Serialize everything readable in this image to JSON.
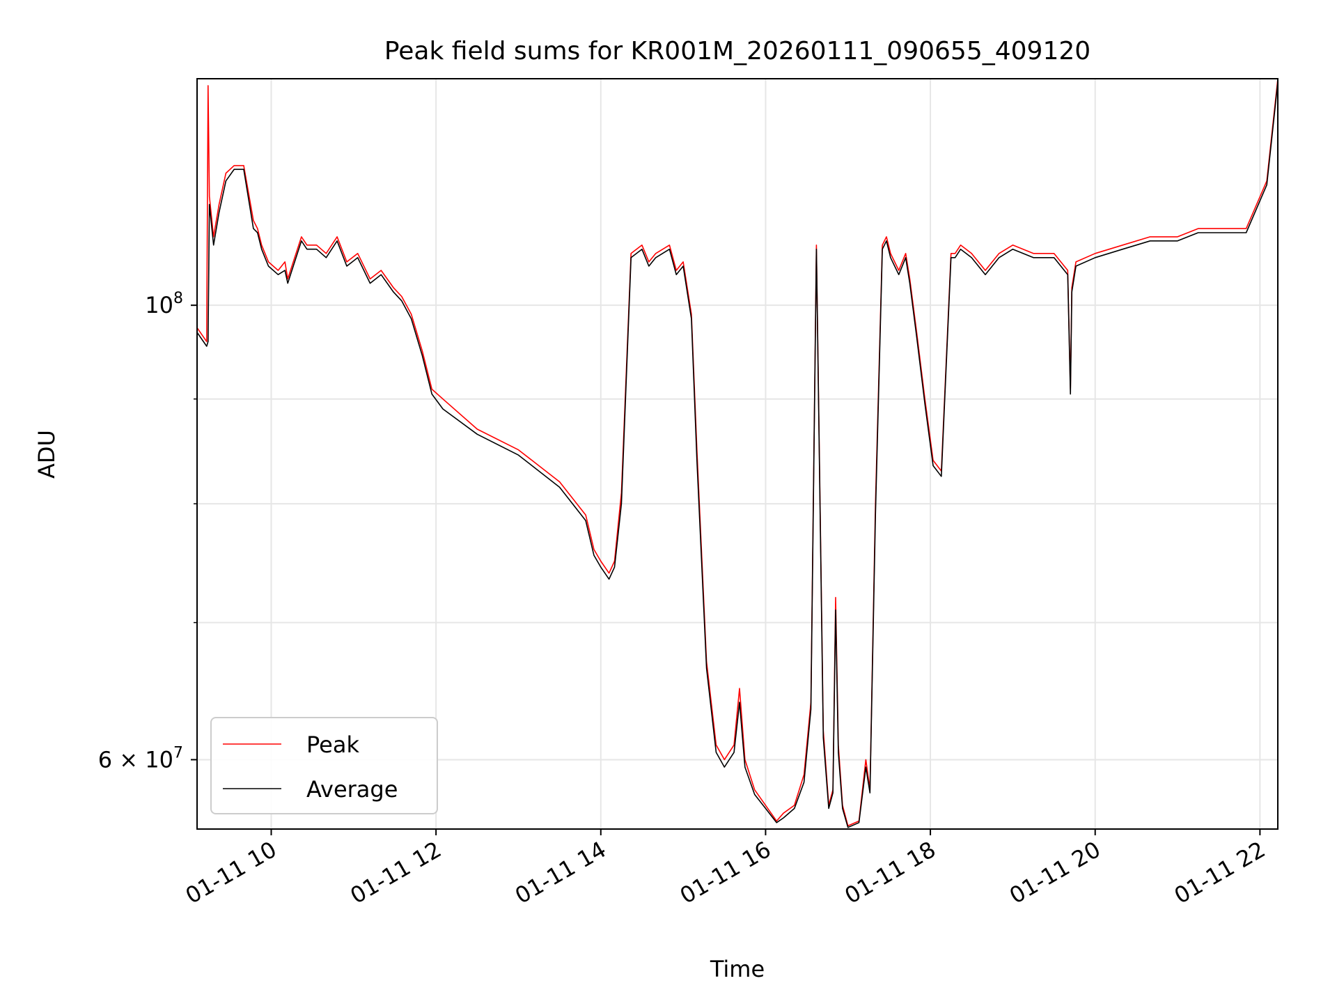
{
  "chart_data": {
    "type": "line",
    "title": "Peak field sums for KR001M_20260111_090655_409120",
    "xlabel": "Time",
    "ylabel": "ADU",
    "yscale": "log",
    "xlim": [
      "01-11 09:06",
      "01-11 22:13"
    ],
    "ylim": [
      55500000,
      129000000
    ],
    "grid": true,
    "legend_position": "lower left",
    "x_ticks": [
      "01-11 10",
      "01-11 12",
      "01-11 14",
      "01-11 16",
      "01-11 18",
      "01-11 20",
      "01-11 22"
    ],
    "y_tick_labels": [
      {
        "value": 100000000,
        "base": "10",
        "exp": "8"
      },
      {
        "value": 60000000,
        "base": "6 × 10",
        "exp": "7"
      }
    ],
    "y_minor_ticks": [
      70000000,
      80000000,
      90000000
    ],
    "series": [
      {
        "name": "Peak",
        "color": "#ff0000",
        "x": [
          "01-11 09:06",
          "01-11 09:13",
          "01-11 09:14",
          "01-11 09:15",
          "01-11 09:18",
          "01-11 09:22",
          "01-11 09:27",
          "01-11 09:33",
          "01-11 09:40",
          "01-11 09:47",
          "01-11 09:50",
          "01-11 09:53",
          "01-11 09:58",
          "01-11 10:05",
          "01-11 10:10",
          "01-11 10:12",
          "01-11 10:22",
          "01-11 10:26",
          "01-11 10:33",
          "01-11 10:40",
          "01-11 10:48",
          "01-11 10:55",
          "01-11 11:03",
          "01-11 11:12",
          "01-11 11:20",
          "01-11 11:29",
          "01-11 11:35",
          "01-11 11:42",
          "01-11 11:50",
          "01-11 11:57",
          "01-11 12:05",
          "01-11 12:30",
          "01-11 13:00",
          "01-11 13:30",
          "01-11 13:49",
          "01-11 13:55",
          "01-11 14:00",
          "01-11 14:06",
          "01-11 14:10",
          "01-11 14:15",
          "01-11 14:22",
          "01-11 14:30",
          "01-11 14:35",
          "01-11 14:40",
          "01-11 14:50",
          "01-11 14:55",
          "01-11 15:00",
          "01-11 15:06",
          "01-11 15:10",
          "01-11 15:17",
          "01-11 15:24",
          "01-11 15:30",
          "01-11 15:37",
          "01-11 15:41",
          "01-11 15:45",
          "01-11 15:52",
          "01-11 16:00",
          "01-11 16:08",
          "01-11 16:13",
          "01-11 16:21",
          "01-11 16:28",
          "01-11 16:33",
          "01-11 16:37",
          "01-11 16:42",
          "01-11 16:46",
          "01-11 16:49",
          "01-11 16:51",
          "01-11 16:53",
          "01-11 16:56",
          "01-11 17:00",
          "01-11 17:08",
          "01-11 17:13",
          "01-11 17:16",
          "01-11 17:20",
          "01-11 17:25",
          "01-11 17:28",
          "01-11 17:31",
          "01-11 17:37",
          "01-11 17:42",
          "01-11 17:45",
          "01-11 17:50",
          "01-11 17:56",
          "01-11 18:02",
          "01-11 18:08",
          "01-11 18:15",
          "01-11 18:18",
          "01-11 18:22",
          "01-11 18:30",
          "01-11 18:40",
          "01-11 18:50",
          "01-11 19:00",
          "01-11 19:15",
          "01-11 19:30",
          "01-11 19:40",
          "01-11 19:42",
          "01-11 19:43",
          "01-11 19:46",
          "01-11 20:00",
          "01-11 20:20",
          "01-11 20:40",
          "01-11 21:00",
          "01-11 21:15",
          "01-11 21:30",
          "01-11 21:50",
          "01-11 22:05",
          "01-11 22:13"
        ],
        "y": [
          97500000,
          96000000,
          128000000,
          113000000,
          108000000,
          112000000,
          116000000,
          117000000,
          117000000,
          110000000,
          109000000,
          107000000,
          105000000,
          104000000,
          105000000,
          103000000,
          108000000,
          107000000,
          107000000,
          106000000,
          108000000,
          105000000,
          106000000,
          103000000,
          104000000,
          102000000,
          101000000,
          99000000,
          95000000,
          91000000,
          90000000,
          87000000,
          85000000,
          82000000,
          79000000,
          76000000,
          75000000,
          74000000,
          75000000,
          81000000,
          106000000,
          107000000,
          105000000,
          106000000,
          107000000,
          104000000,
          105000000,
          99000000,
          85000000,
          67000000,
          61000000,
          60000000,
          61000000,
          65000000,
          60000000,
          58000000,
          57000000,
          56000000,
          56500000,
          57000000,
          59000000,
          64000000,
          107000000,
          62000000,
          57000000,
          58000000,
          72000000,
          61000000,
          57000000,
          55700000,
          56000000,
          60000000,
          58000000,
          80000000,
          107000000,
          108000000,
          106000000,
          104000000,
          106000000,
          103000000,
          97000000,
          90000000,
          84000000,
          83000000,
          106000000,
          106000000,
          107000000,
          106000000,
          104000000,
          106000000,
          107000000,
          106000000,
          106000000,
          104000000,
          91000000,
          102000000,
          105000000,
          106000000,
          107000000,
          108000000,
          108000000,
          109000000,
          109000000,
          109000000,
          115000000,
          129000000
        ]
      },
      {
        "name": "Average",
        "color": "#000000",
        "x": [
          "01-11 09:06",
          "01-11 09:13",
          "01-11 09:14",
          "01-11 09:15",
          "01-11 09:18",
          "01-11 09:22",
          "01-11 09:27",
          "01-11 09:33",
          "01-11 09:40",
          "01-11 09:47",
          "01-11 09:50",
          "01-11 09:53",
          "01-11 09:58",
          "01-11 10:05",
          "01-11 10:10",
          "01-11 10:12",
          "01-11 10:22",
          "01-11 10:26",
          "01-11 10:33",
          "01-11 10:40",
          "01-11 10:48",
          "01-11 10:55",
          "01-11 11:03",
          "01-11 11:12",
          "01-11 11:20",
          "01-11 11:29",
          "01-11 11:35",
          "01-11 11:42",
          "01-11 11:50",
          "01-11 11:57",
          "01-11 12:05",
          "01-11 12:30",
          "01-11 13:00",
          "01-11 13:30",
          "01-11 13:49",
          "01-11 13:55",
          "01-11 14:00",
          "01-11 14:06",
          "01-11 14:10",
          "01-11 14:15",
          "01-11 14:22",
          "01-11 14:30",
          "01-11 14:35",
          "01-11 14:40",
          "01-11 14:50",
          "01-11 14:55",
          "01-11 15:00",
          "01-11 15:06",
          "01-11 15:10",
          "01-11 15:17",
          "01-11 15:24",
          "01-11 15:30",
          "01-11 15:37",
          "01-11 15:41",
          "01-11 15:45",
          "01-11 15:52",
          "01-11 16:00",
          "01-11 16:08",
          "01-11 16:13",
          "01-11 16:21",
          "01-11 16:28",
          "01-11 16:33",
          "01-11 16:37",
          "01-11 16:42",
          "01-11 16:46",
          "01-11 16:49",
          "01-11 16:51",
          "01-11 16:53",
          "01-11 16:56",
          "01-11 17:00",
          "01-11 17:08",
          "01-11 17:13",
          "01-11 17:16",
          "01-11 17:20",
          "01-11 17:25",
          "01-11 17:28",
          "01-11 17:31",
          "01-11 17:37",
          "01-11 17:42",
          "01-11 17:45",
          "01-11 17:50",
          "01-11 17:56",
          "01-11 18:02",
          "01-11 18:08",
          "01-11 18:15",
          "01-11 18:18",
          "01-11 18:22",
          "01-11 18:30",
          "01-11 18:40",
          "01-11 18:50",
          "01-11 19:00",
          "01-11 19:15",
          "01-11 19:30",
          "01-11 19:40",
          "01-11 19:42",
          "01-11 19:43",
          "01-11 19:46",
          "01-11 20:00",
          "01-11 20:20",
          "01-11 20:40",
          "01-11 21:00",
          "01-11 21:15",
          "01-11 21:30",
          "01-11 21:50",
          "01-11 22:05",
          "01-11 22:13"
        ],
        "y": [
          97000000,
          95500000,
          96000000,
          112000000,
          107000000,
          111000000,
          115000000,
          116500000,
          116500000,
          109000000,
          108500000,
          106500000,
          104500000,
          103500000,
          104000000,
          102500000,
          107500000,
          106500000,
          106500000,
          105500000,
          107500000,
          104500000,
          105500000,
          102500000,
          103500000,
          101500000,
          100500000,
          98500000,
          94500000,
          90500000,
          89000000,
          86500000,
          84500000,
          81500000,
          78500000,
          75500000,
          74500000,
          73500000,
          74500000,
          80000000,
          105500000,
          106500000,
          104500000,
          105500000,
          106500000,
          103500000,
          104500000,
          98500000,
          84000000,
          66500000,
          60500000,
          59500000,
          60500000,
          64000000,
          59500000,
          57700000,
          56800000,
          55900000,
          56200000,
          56800000,
          58500000,
          63500000,
          106500000,
          61500000,
          56800000,
          57800000,
          71000000,
          60500000,
          56800000,
          55600000,
          55900000,
          59500000,
          57800000,
          79000000,
          106500000,
          107500000,
          105500000,
          103500000,
          105500000,
          102500000,
          96500000,
          89500000,
          83500000,
          82500000,
          105500000,
          105500000,
          106500000,
          105500000,
          103500000,
          105500000,
          106500000,
          105500000,
          105500000,
          103500000,
          90500000,
          101500000,
          104500000,
          105500000,
          106500000,
          107500000,
          107500000,
          108500000,
          108500000,
          108500000,
          114500000,
          128500000
        ]
      }
    ]
  }
}
